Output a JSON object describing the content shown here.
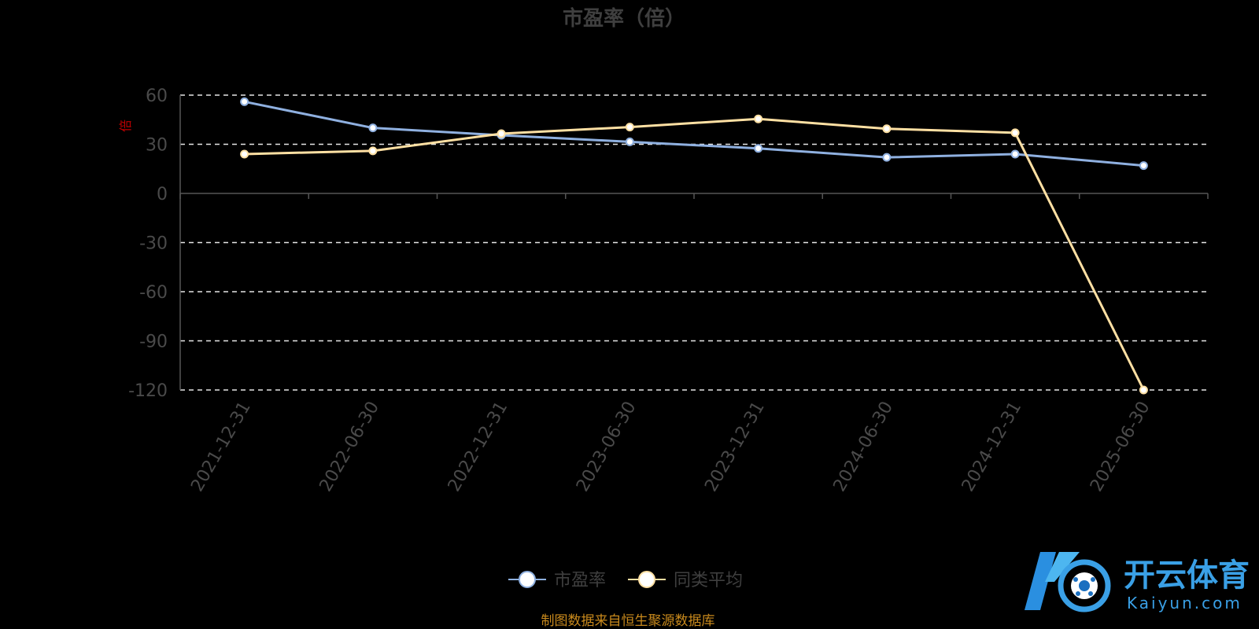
{
  "chart_data": {
    "type": "line",
    "title": "市盈率（倍）",
    "ylabel": "倍",
    "categories": [
      "2021-12-31",
      "2022-06-30",
      "2022-12-31",
      "2023-06-30",
      "2023-12-31",
      "2024-06-30",
      "2024-12-31",
      "2025-06-30"
    ],
    "ylim": [
      -120,
      60
    ],
    "yticks": [
      60,
      30,
      0,
      -30,
      -60,
      -90,
      -120
    ],
    "grid": true,
    "legend_position": "bottom-center",
    "series": [
      {
        "name": "市盈率",
        "color": "#8fb0e0",
        "values": [
          56,
          40,
          35.5,
          31.5,
          27.5,
          22,
          24,
          17
        ]
      },
      {
        "name": "同类平均",
        "color": "#ffe0a3",
        "values": [
          24,
          26,
          36.5,
          40.5,
          45.5,
          39.5,
          37,
          -120
        ]
      }
    ]
  },
  "source": "制图数据来自恒生聚源数据库",
  "watermark": {
    "cn": "开云体育",
    "en": "Kaiyun.com"
  }
}
